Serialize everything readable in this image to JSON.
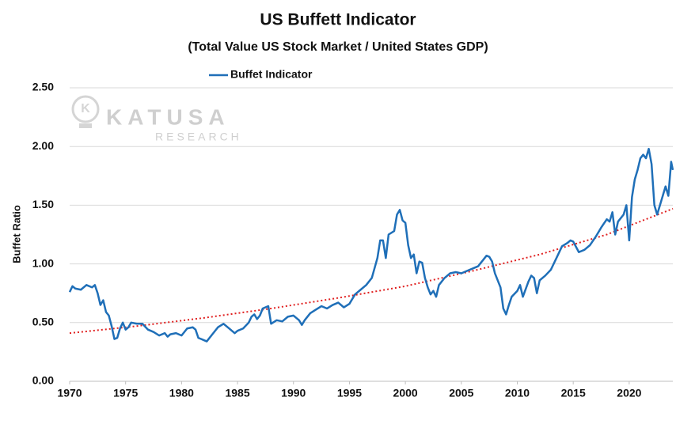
{
  "chart_data": {
    "type": "line",
    "title": "US Buffett Indicator",
    "subtitle": "(Total Value US Stock Market / United States GDP)",
    "y_label": "Buffet Ratio",
    "watermark": {
      "name": "KATUSA",
      "tagline": "RESEARCH"
    },
    "legend": "top",
    "grid": true,
    "xlim": [
      1970,
      2023.9
    ],
    "xticks": [
      1970,
      1975,
      1980,
      1985,
      1990,
      1995,
      2000,
      2005,
      2010,
      2015,
      2020
    ],
    "ylim": [
      0,
      2.5
    ],
    "yticks": [
      {
        "value": 0,
        "label": "0.00"
      },
      {
        "value": 0.5,
        "label": "0.50"
      },
      {
        "value": 1,
        "label": "1.00"
      },
      {
        "value": 1.5,
        "label": "1.50"
      },
      {
        "value": 2,
        "label": "2.00"
      },
      {
        "value": 2.5,
        "label": "2.50"
      }
    ],
    "x": [
      1970,
      1970.25,
      1970.5,
      1971,
      1971.5,
      1972,
      1972.25,
      1972.5,
      1972.75,
      1973,
      1973.25,
      1973.5,
      1973.75,
      1974,
      1974.25,
      1974.5,
      1974.75,
      1975,
      1975.25,
      1975.5,
      1976,
      1976.5,
      1977,
      1977.5,
      1978,
      1978.5,
      1978.75,
      1979,
      1979.5,
      1980,
      1980.5,
      1981,
      1981.25,
      1981.5,
      1982,
      1982.25,
      1982.75,
      1983.25,
      1983.75,
      1984.25,
      1984.75,
      1985,
      1985.5,
      1986,
      1986.25,
      1986.5,
      1986.75,
      1987,
      1987.25,
      1987.5,
      1987.75,
      1988,
      1988.5,
      1989,
      1989.5,
      1990,
      1990.5,
      1990.75,
      1991,
      1991.5,
      1992,
      1992.5,
      1993,
      1993.5,
      1994,
      1994.5,
      1995,
      1995.5,
      1996,
      1996.5,
      1997,
      1997.5,
      1997.75,
      1998,
      1998.25,
      1998.5,
      1999,
      1999.25,
      1999.5,
      1999.75,
      2000,
      2000.25,
      2000.5,
      2000.75,
      2001,
      2001.25,
      2001.5,
      2001.75,
      2002,
      2002.25,
      2002.5,
      2002.75,
      2003,
      2003.5,
      2004,
      2004.5,
      2005,
      2005.5,
      2006,
      2006.5,
      2007,
      2007.25,
      2007.5,
      2007.75,
      2008,
      2008.5,
      2008.75,
      2009,
      2009.25,
      2009.5,
      2010,
      2010.25,
      2010.5,
      2011,
      2011.25,
      2011.5,
      2011.75,
      2012,
      2012.5,
      2013,
      2013.5,
      2014,
      2014.5,
      2014.75,
      2015,
      2015.5,
      2016,
      2016.5,
      2017,
      2017.5,
      2018,
      2018.25,
      2018.5,
      2018.75,
      2019,
      2019.5,
      2019.75,
      2020,
      2020.25,
      2020.5,
      2020.75,
      2021,
      2021.25,
      2021.5,
      2021.75,
      2022,
      2022.25,
      2022.5,
      2022.75,
      2023,
      2023.25,
      2023.5,
      2023.75,
      2023.9
    ],
    "series": [
      {
        "name": "Buffet Indicator",
        "color": "#1f6fb8",
        "values": [
          0.76,
          0.81,
          0.79,
          0.78,
          0.82,
          0.8,
          0.82,
          0.75,
          0.65,
          0.69,
          0.59,
          0.56,
          0.47,
          0.36,
          0.37,
          0.45,
          0.5,
          0.44,
          0.46,
          0.5,
          0.49,
          0.49,
          0.44,
          0.42,
          0.39,
          0.41,
          0.38,
          0.4,
          0.41,
          0.39,
          0.45,
          0.46,
          0.44,
          0.37,
          0.35,
          0.34,
          0.4,
          0.46,
          0.49,
          0.45,
          0.41,
          0.43,
          0.45,
          0.5,
          0.55,
          0.57,
          0.53,
          0.56,
          0.62,
          0.63,
          0.64,
          0.49,
          0.52,
          0.51,
          0.55,
          0.56,
          0.52,
          0.48,
          0.52,
          0.58,
          0.61,
          0.64,
          0.62,
          0.65,
          0.67,
          0.63,
          0.66,
          0.74,
          0.78,
          0.82,
          0.88,
          1.05,
          1.2,
          1.2,
          1.05,
          1.25,
          1.28,
          1.42,
          1.46,
          1.37,
          1.35,
          1.16,
          1.05,
          1.08,
          0.92,
          1.02,
          1.01,
          0.88,
          0.8,
          0.74,
          0.77,
          0.72,
          0.82,
          0.88,
          0.92,
          0.93,
          0.92,
          0.94,
          0.96,
          0.98,
          1.04,
          1.07,
          1.06,
          1.02,
          0.92,
          0.8,
          0.62,
          0.57,
          0.65,
          0.72,
          0.77,
          0.82,
          0.72,
          0.85,
          0.9,
          0.88,
          0.75,
          0.86,
          0.9,
          0.95,
          1.05,
          1.15,
          1.18,
          1.2,
          1.19,
          1.1,
          1.12,
          1.16,
          1.23,
          1.31,
          1.38,
          1.36,
          1.44,
          1.25,
          1.36,
          1.42,
          1.5,
          1.2,
          1.57,
          1.72,
          1.8,
          1.9,
          1.93,
          1.9,
          1.98,
          1.85,
          1.5,
          1.42,
          1.5,
          1.58,
          1.66,
          1.58,
          1.87,
          1.8
        ]
      }
    ],
    "trendline": {
      "color": "#e02020",
      "x": [
        1970,
        1976,
        1982,
        1988,
        1994,
        2000,
        2006,
        2012,
        2018,
        2023.9
      ],
      "values": [
        0.41,
        0.47,
        0.54,
        0.62,
        0.71,
        0.81,
        0.94,
        1.08,
        1.25,
        1.47
      ]
    }
  }
}
